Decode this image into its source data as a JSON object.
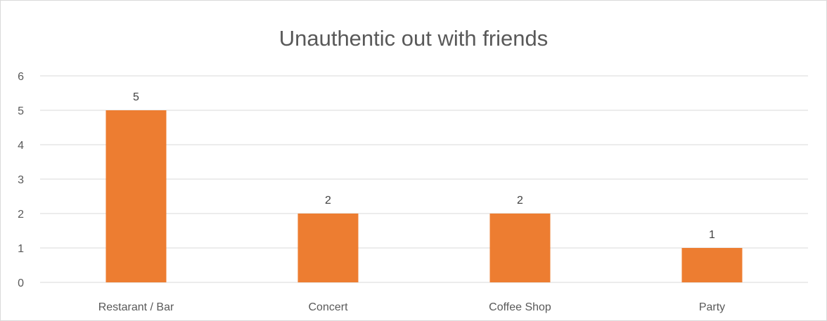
{
  "chart_data": {
    "type": "bar",
    "title": "Unauthentic out with friends",
    "categories": [
      "Restarant / Bar",
      "Concert",
      "Coffee Shop",
      "Party"
    ],
    "values": [
      5,
      2,
      2,
      1
    ],
    "ylim": [
      0,
      6
    ],
    "yticks": [
      "0",
      "1",
      "2",
      "3",
      "4",
      "5",
      "6"
    ],
    "data_labels": [
      "5",
      "2",
      "2",
      "1"
    ],
    "bar_color": "#ED7D31",
    "grid": true,
    "legend": "none"
  }
}
